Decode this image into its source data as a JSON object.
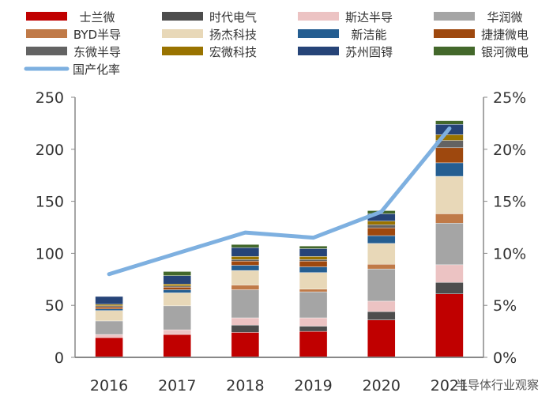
{
  "chart_data": {
    "type": "bar",
    "stacked": true,
    "categories": [
      "2016",
      "2017",
      "2018",
      "2019",
      "2020",
      "2021"
    ],
    "ylim": [
      0,
      250
    ],
    "yticks": [
      0,
      50,
      100,
      150,
      200,
      250
    ],
    "y2lim": [
      0,
      25
    ],
    "y2ticks": [
      "0%",
      "5%",
      "10%",
      "15%",
      "20%",
      "25%"
    ],
    "grid": false,
    "legend": "top",
    "series": [
      {
        "name": "士兰微",
        "color": "#c00000",
        "values": [
          19,
          22,
          24,
          25,
          36,
          61
        ]
      },
      {
        "name": "时代电气",
        "color": "#4d4d4d",
        "values": [
          0,
          0,
          7,
          5,
          8,
          11
        ]
      },
      {
        "name": "斯达半导",
        "color": "#ecc3c3",
        "values": [
          3,
          4.5,
          7,
          8,
          10,
          17
        ]
      },
      {
        "name": "华润微",
        "color": "#a5a5a5",
        "values": [
          13,
          23,
          27,
          25,
          31,
          40
        ]
      },
      {
        "name": "BYD半导",
        "color": "#c07a48",
        "values": [
          0,
          0,
          4.5,
          2.5,
          4.5,
          9
        ]
      },
      {
        "name": "扬杰科技",
        "color": "#e8d8b8",
        "values": [
          10,
          12.5,
          14,
          16,
          20,
          36
        ]
      },
      {
        "name": "新洁能",
        "color": "#255e91",
        "values": [
          1.5,
          3,
          5,
          5.5,
          7.5,
          13
        ]
      },
      {
        "name": "捷捷微电",
        "color": "#9e480e",
        "values": [
          2,
          2.5,
          4,
          5.5,
          7.5,
          14.5
        ]
      },
      {
        "name": "东微半导",
        "color": "#636363",
        "values": [
          1,
          1,
          1.5,
          1.5,
          3,
          7
        ]
      },
      {
        "name": "宏微科技",
        "color": "#997300",
        "values": [
          1.5,
          2,
          3,
          3,
          3.5,
          5.5
        ]
      },
      {
        "name": "苏州固锝",
        "color": "#264478",
        "values": [
          7.5,
          8,
          8.5,
          7.5,
          7,
          10
        ]
      },
      {
        "name": "银河微电",
        "color": "#43682b",
        "values": [
          0,
          4,
          3,
          2.5,
          3,
          3.5
        ]
      }
    ],
    "line": {
      "name": "国产化率",
      "color": "#7eb0e0",
      "axis": "right",
      "values": [
        8,
        10,
        12,
        11.5,
        14,
        22
      ]
    }
  },
  "watermark": "半导体行业观察"
}
